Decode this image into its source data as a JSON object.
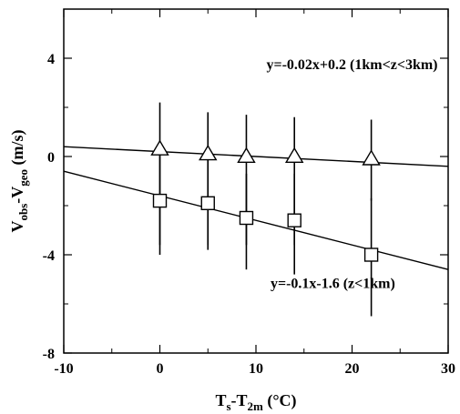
{
  "chart_data": {
    "type": "scatter",
    "xlabel": {
      "main": "T",
      "sub1": "s",
      "mid": "-T",
      "sub2": "2m",
      "unit": " (°C)"
    },
    "ylabel": {
      "main": "V",
      "sub1": "obs",
      "mid": "-V",
      "sub2": "geo",
      "unit": " (m/s)"
    },
    "xlim": [
      -10,
      30
    ],
    "ylim": [
      -8,
      6
    ],
    "xticks": [
      -10,
      0,
      10,
      20,
      30
    ],
    "yticks": [
      -8,
      -4,
      0,
      4
    ],
    "grid": false,
    "series": [
      {
        "marker": "triangle",
        "x": [
          0,
          5,
          9,
          14,
          22
        ],
        "y": [
          0.3,
          0.1,
          0.0,
          0.0,
          -0.1
        ],
        "err_low": [
          -3.6,
          -3.6,
          -3.6,
          -3.6,
          -1.8
        ],
        "err_high": [
          2.2,
          1.8,
          1.7,
          1.6,
          1.5
        ]
      },
      {
        "marker": "square",
        "x": [
          0,
          5,
          9,
          14,
          22
        ],
        "y": [
          -1.8,
          -1.9,
          -2.5,
          -2.6,
          -4.0
        ],
        "err_low": [
          -4.0,
          -3.8,
          -4.6,
          -4.8,
          -6.5
        ],
        "err_high": [
          0.4,
          0.1,
          -0.7,
          -0.7,
          -1.7
        ]
      }
    ],
    "fit_lines": [
      {
        "slope": -0.02,
        "intercept": 0.2
      },
      {
        "slope": -0.1,
        "intercept": -1.6
      }
    ],
    "annotations": [
      {
        "text": "y=-0.02x+0.2 (1km<z<3km)",
        "x": 20,
        "y": 3.55
      },
      {
        "text": "y=-0.1x-1.6 (z<1km)",
        "x": 18,
        "y": -5.35
      }
    ]
  }
}
